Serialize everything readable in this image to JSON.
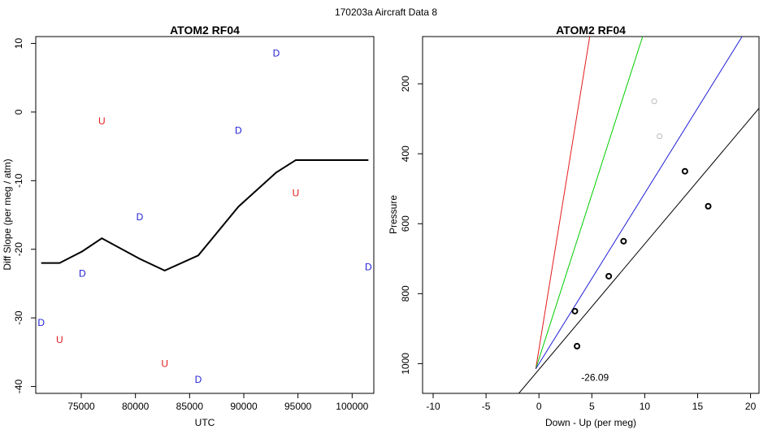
{
  "suptitle": "170203a   Aircraft Data 8",
  "chart_data": [
    {
      "type": "scatter",
      "title": "ATOM2 RF04",
      "xlabel": "UTC",
      "ylabel": "Diff Slope (per meg / atm)",
      "xlim": [
        70800,
        102000
      ],
      "ylim": [
        -41,
        11
      ],
      "xticks": [
        75000,
        80000,
        85000,
        90000,
        95000,
        100000
      ],
      "yticks": [
        -40,
        -30,
        -20,
        -10,
        0,
        10
      ],
      "grid": false,
      "points": [
        {
          "x": 76900,
          "y": -1.3,
          "label": "U",
          "color": "#e41a1c"
        },
        {
          "x": 94800,
          "y": -11.8,
          "label": "U",
          "color": "#e41a1c"
        },
        {
          "x": 73000,
          "y": -33.2,
          "label": "U",
          "color": "#e41a1c"
        },
        {
          "x": 82700,
          "y": -36.7,
          "label": "U",
          "color": "#e41a1c"
        },
        {
          "x": 93000,
          "y": 8.6,
          "label": "D",
          "color": "#1f1fd6"
        },
        {
          "x": 89500,
          "y": -2.7,
          "label": "D",
          "color": "#1f1fd6"
        },
        {
          "x": 80400,
          "y": -15.3,
          "label": "D",
          "color": "#1f1fd6"
        },
        {
          "x": 75100,
          "y": -23.5,
          "label": "D",
          "color": "#1f1fd6"
        },
        {
          "x": 101500,
          "y": -22.6,
          "label": "D",
          "color": "#1f1fd6"
        },
        {
          "x": 71300,
          "y": -30.7,
          "label": "D",
          "color": "#1f1fd6"
        },
        {
          "x": 85800,
          "y": -39.0,
          "label": "D",
          "color": "#1f1fd6"
        }
      ],
      "line": {
        "x": [
          71300,
          73000,
          75100,
          76900,
          80400,
          82700,
          85800,
          89500,
          93000,
          94800,
          101500
        ],
        "y": [
          -22.0,
          -22.0,
          -20.3,
          -18.4,
          -21.4,
          -23.1,
          -20.9,
          -13.8,
          -8.8,
          -7.0,
          -7.0
        ],
        "color": "#000000"
      }
    },
    {
      "type": "scatter",
      "title": "ATOM2 RF04",
      "xlabel": "Down - Up (per meg)",
      "ylabel": "Pressure",
      "xlim": [
        -11,
        20.8
      ],
      "ylim": [
        1085,
        65
      ],
      "y_reversed": true,
      "xticks": [
        -10,
        -5,
        0,
        5,
        10,
        15,
        20
      ],
      "yticks": [
        200,
        400,
        600,
        800,
        1000
      ],
      "grid": false,
      "points": [
        {
          "x": 3.4,
          "y": 850,
          "color": "#000000"
        },
        {
          "x": 3.6,
          "y": 950,
          "color": "#000000"
        },
        {
          "x": 6.6,
          "y": 750,
          "color": "#000000"
        },
        {
          "x": 8.0,
          "y": 650,
          "color": "#000000"
        },
        {
          "x": 13.8,
          "y": 450,
          "color": "#000000"
        },
        {
          "x": 16.0,
          "y": 550,
          "color": "#000000"
        },
        {
          "x": 10.9,
          "y": 250,
          "color": "#bbbbbb"
        },
        {
          "x": 11.4,
          "y": 350,
          "color": "#bbbbbb"
        }
      ],
      "lines": [
        {
          "color": "#e41a1c",
          "x": [
            -0.3,
            4.8
          ],
          "y": [
            1015,
            65
          ]
        },
        {
          "color": "#00cc00",
          "x": [
            -0.3,
            9.8
          ],
          "y": [
            1015,
            65
          ]
        },
        {
          "color": "#1f1fd6",
          "x": [
            -0.3,
            19.2
          ],
          "y": [
            1015,
            65
          ]
        },
        {
          "color": "#000000",
          "x": [
            -1.9,
            20.8
          ],
          "y": [
            1085,
            270
          ]
        }
      ],
      "annotation": {
        "text": "-26.09",
        "x": 5.3,
        "y": 1040
      }
    }
  ]
}
